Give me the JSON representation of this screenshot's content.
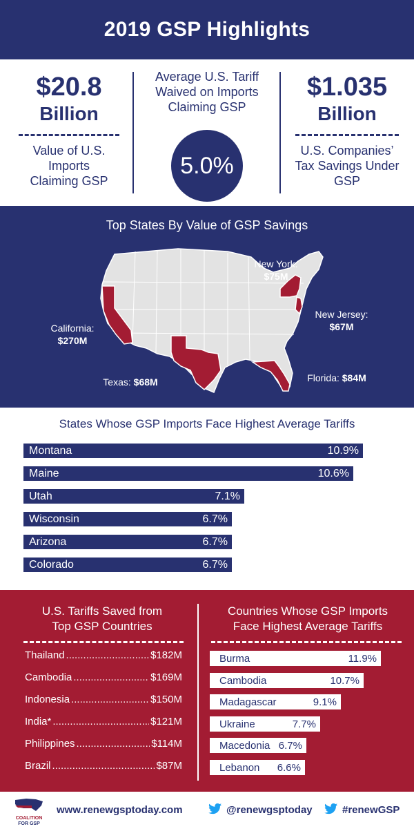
{
  "header": {
    "title": "2019 GSP Highlights"
  },
  "stats": {
    "left": {
      "value": "$20.8",
      "unit": "Billion",
      "desc": [
        "Value of U.S.",
        "Imports",
        "Claiming GSP"
      ]
    },
    "center": {
      "desc": [
        "Average U.S. Tariff",
        "Waived on Imports",
        "Claiming GSP"
      ],
      "value": "5.0%"
    },
    "right": {
      "value": "$1.035",
      "unit": "Billion",
      "desc": [
        "U.S. Companies’",
        "Tax Savings Under",
        "GSP"
      ]
    }
  },
  "map": {
    "title": "Top States By Value of GSP Savings",
    "labels": {
      "california": {
        "name": "California:",
        "value": "$270M"
      },
      "new_york": {
        "name": "New York:",
        "value": "$75M"
      },
      "new_jersey": {
        "name": "New Jersey:",
        "value": "$67M"
      },
      "texas": {
        "name": "Texas:",
        "value": "$68M"
      },
      "florida": {
        "name": "Florida:",
        "value": "$84M"
      }
    }
  },
  "states_tariffs": {
    "title": "States Whose GSP Imports Face Highest Average Tariffs",
    "rows": [
      {
        "name": "Montana",
        "label": "10.9%",
        "value": 10.9
      },
      {
        "name": "Maine",
        "label": "10.6%",
        "value": 10.6
      },
      {
        "name": "Utah",
        "label": "7.1%",
        "value": 7.1
      },
      {
        "name": "Wisconsin",
        "label": "6.7%",
        "value": 6.7
      },
      {
        "name": "Arizona",
        "label": "6.7%",
        "value": 6.7
      },
      {
        "name": "Colorado",
        "label": "6.7%",
        "value": 6.7
      }
    ]
  },
  "tariffs_saved": {
    "title": [
      "U.S. Tariffs Saved from",
      "Top GSP Countries"
    ],
    "rows": [
      {
        "name": "Thailand",
        "value": "$182M"
      },
      {
        "name": "Cambodia",
        "value": "$169M"
      },
      {
        "name": "Indonesia",
        "value": "$150M"
      },
      {
        "name": "India*",
        "value": "$121M"
      },
      {
        "name": "Philippines",
        "value": "$114M"
      },
      {
        "name": "Brazil",
        "value": "$87M"
      }
    ]
  },
  "countries_tariffs": {
    "title": [
      "Countries Whose GSP Imports",
      "Face Highest Average Tariffs"
    ],
    "rows": [
      {
        "name": "Burma",
        "label": "11.9%",
        "value": 11.9
      },
      {
        "name": "Cambodia",
        "label": "10.7%",
        "value": 10.7
      },
      {
        "name": "Madagascar",
        "label": "9.1%",
        "value": 9.1
      },
      {
        "name": "Ukraine",
        "label": "7.7%",
        "value": 7.7
      },
      {
        "name": "Macedonia",
        "label": "6.7%",
        "value": 6.7
      },
      {
        "name": "Lebanon",
        "label": "6.6%",
        "value": 6.6
      }
    ]
  },
  "footer": {
    "logo_line1": "COALITION",
    "logo_line2": "FOR GSP",
    "website": "www.renewgsptoday.com",
    "twitter_handle": "@renewgsptoday",
    "hashtag": "#renewGSP",
    "icons": [
      "twitter-icon",
      "twitter-icon"
    ]
  },
  "colors": {
    "navy": "#283170",
    "red": "#a31c33",
    "map_gray": "#e3e3e3",
    "white": "#ffffff"
  }
}
